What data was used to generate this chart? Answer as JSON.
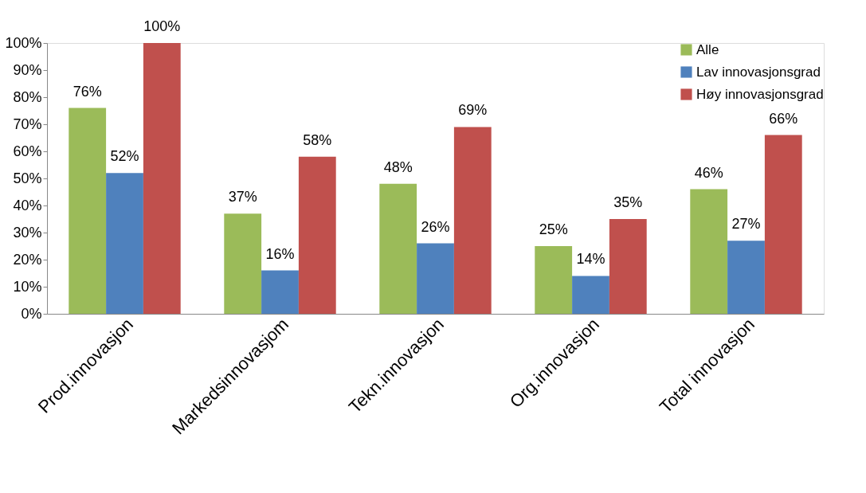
{
  "chart_data": {
    "type": "bar",
    "categories": [
      "Prod.innovasjon",
      "Markedsinnovasjom",
      "Tekn.innovasjon",
      "Org.innovasjon",
      "Total innovasjon"
    ],
    "series": [
      {
        "name": "Alle",
        "color": "#9bbb59",
        "values": [
          76,
          37,
          48,
          25,
          46
        ],
        "value_labels": [
          "76%",
          "37%",
          "48%",
          "25%",
          "46%"
        ]
      },
      {
        "name": "Lav innovasjonsgrad",
        "color": "#4f81bd",
        "values": [
          52,
          16,
          26,
          14,
          27
        ],
        "value_labels": [
          "52%",
          "16%",
          "26%",
          "14%",
          "27%"
        ]
      },
      {
        "name": "Høy innovasjonsgrad",
        "color": "#c0504d",
        "values": [
          100,
          58,
          69,
          35,
          66
        ],
        "value_labels": [
          "100%",
          "58%",
          "69%",
          "35%",
          "66%"
        ]
      }
    ],
    "ylim": [
      0,
      100
    ],
    "yticks": [
      {
        "value": 0,
        "label": "0%"
      },
      {
        "value": 10,
        "label": "10%"
      },
      {
        "value": 20,
        "label": "20%"
      },
      {
        "value": 30,
        "label": "30%"
      },
      {
        "value": 40,
        "label": "40%"
      },
      {
        "value": 50,
        "label": "50%"
      },
      {
        "value": 60,
        "label": "60%"
      },
      {
        "value": 70,
        "label": "70%"
      },
      {
        "value": 80,
        "label": "80%"
      },
      {
        "value": 90,
        "label": "90%"
      },
      {
        "value": 100,
        "label": "100%"
      }
    ],
    "grid": false,
    "legend": "top right"
  }
}
